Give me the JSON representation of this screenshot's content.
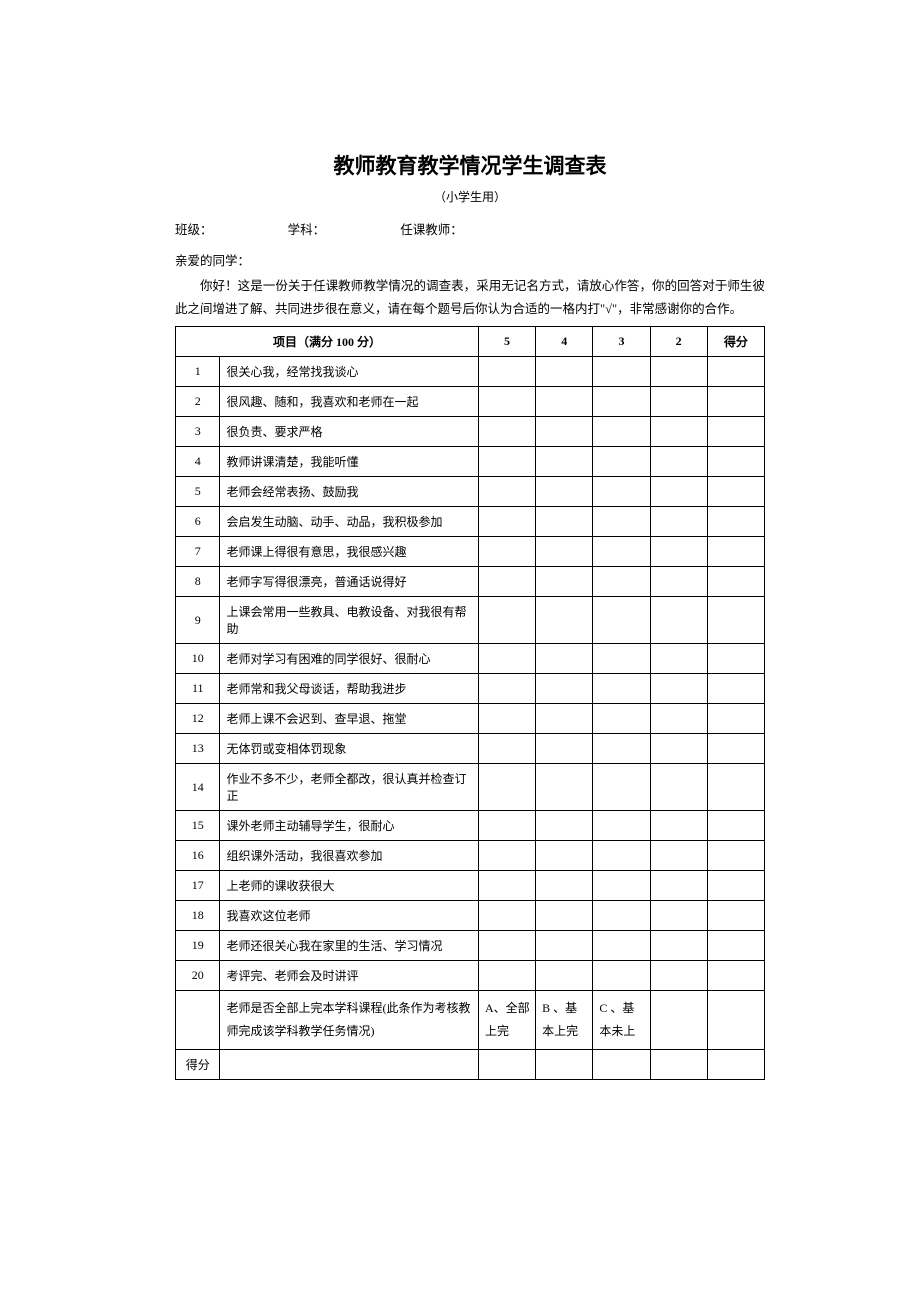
{
  "title": "教师教育教学情况学生调查表",
  "subtitle": "（小学生用）",
  "meta": {
    "class_label": "班级：",
    "subject_label": "学科：",
    "teacher_label": "任课教师："
  },
  "greeting": "亲爱的同学：",
  "intro": "你好！这是一份关于任课教师教学情况的调查表，采用无记名方式，请放心作答，你的回答对于师生彼此之间增进了解、共同进步很在意义，请在每个题号后你认为合适的一格内打\"√\"，非常感谢你的合作。",
  "header": {
    "item": "项目（满分 100 分）",
    "col5": "5",
    "col4": "4",
    "col3": "3",
    "col2": "2",
    "score": "得分"
  },
  "rows": [
    {
      "num": "1",
      "item": "很关心我，经常找我谈心"
    },
    {
      "num": "2",
      "item": "很风趣、随和，我喜欢和老师在一起"
    },
    {
      "num": "3",
      "item": "很负责、要求严格"
    },
    {
      "num": "4",
      "item": "教师讲课清楚，我能听懂"
    },
    {
      "num": "5",
      "item": "老师会经常表扬、鼓励我"
    },
    {
      "num": "6",
      "item": "会启发生动脑、动手、动品，我积极参加"
    },
    {
      "num": "7",
      "item": "老师课上得很有意思，我很感兴趣"
    },
    {
      "num": "8",
      "item": "老师字写得很漂亮，普通话说得好"
    },
    {
      "num": "9",
      "item": "上课会常用一些教具、电教设备、对我很有帮助"
    },
    {
      "num": "10",
      "item": "老师对学习有困难的同学很好、很耐心"
    },
    {
      "num": "11",
      "item": "老师常和我父母谈话，帮助我进步"
    },
    {
      "num": "12",
      "item": "老师上课不会迟到、查早退、拖堂"
    },
    {
      "num": "13",
      "item": "无体罚或变相体罚现象"
    },
    {
      "num": "14",
      "item": "作业不多不少，老师全都改，很认真并检查订正"
    },
    {
      "num": "15",
      "item": "课外老师主动辅导学生，很耐心"
    },
    {
      "num": "16",
      "item": "组织课外活动，我很喜欢参加"
    },
    {
      "num": "17",
      "item": "上老师的课收获很大"
    },
    {
      "num": "18",
      "item": "我喜欢这位老师"
    },
    {
      "num": "19",
      "item": "老师还很关心我在家里的生活、学习情况"
    },
    {
      "num": "20",
      "item": "考评完、老师会及时讲评"
    }
  ],
  "special_row": {
    "item": "老师是否全部上完本学科课程(此条作为考核教师完成该学科教学任务情况)",
    "a": "A、全部 上完",
    "b": "B 、基本上完",
    "c": "C 、基本未上"
  },
  "score_row_label": "得分"
}
